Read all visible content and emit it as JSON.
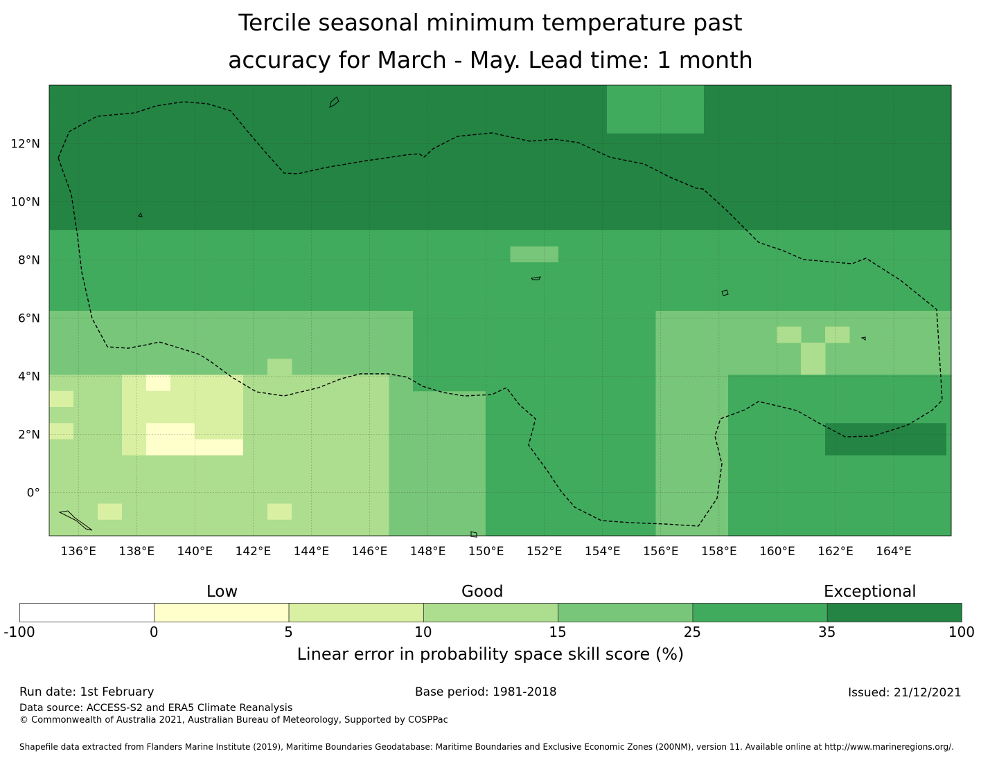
{
  "title": {
    "line1": "Tercile seasonal minimum temperature past",
    "line2": "accuracy for March - May. Lead time: 1 month"
  },
  "map": {
    "lon_labels": [
      "136°E",
      "138°E",
      "140°E",
      "142°E",
      "144°E",
      "146°E",
      "148°E",
      "150°E",
      "152°E",
      "154°E",
      "156°E",
      "158°E",
      "160°E",
      "162°E",
      "164°E"
    ],
    "lat_labels": [
      "12°N",
      "10°N",
      "8°N",
      "6°N",
      "4°N",
      "2°N",
      "0°"
    ],
    "colors": {
      "c1": "#ffffcc",
      "c2": "#d9f0a3",
      "c3": "#addd8e",
      "c4": "#78c679",
      "c5": "#41ab5d",
      "c6": "#238443",
      "grid": "#333333",
      "boundary": "#000000"
    }
  },
  "colorbar": {
    "categories": {
      "low": "Low",
      "good": "Good",
      "exceptional": "Exceptional"
    },
    "ticks": [
      "-100",
      "0",
      "5",
      "10",
      "15",
      "25",
      "35",
      "100"
    ],
    "colors": [
      "#ffffff",
      "#ffffcc",
      "#d9f0a3",
      "#addd8e",
      "#78c679",
      "#41ab5d",
      "#238443"
    ],
    "title": "Linear error in probability space skill score (%)"
  },
  "footer": {
    "run_date": "Run date: 1st February",
    "base_period": "Base period: 1981-2018",
    "issued": "Issued: 21/12/2021",
    "data_source": "Data source: ACCESS-S2 and ERA5 Climate Reanalysis",
    "copyright": "© Commonwealth of Australia 2021, Australian Bureau of Meteorology, Supported by COSPPac",
    "shapefile": "Shapefile data extracted from Flanders Marine Institute (2019), Maritime Boundaries Geodatabase: Maritime Boundaries and Exclusive Economic Zones (200NM), version 11. Available online at http://www.marineregions.org/."
  }
}
